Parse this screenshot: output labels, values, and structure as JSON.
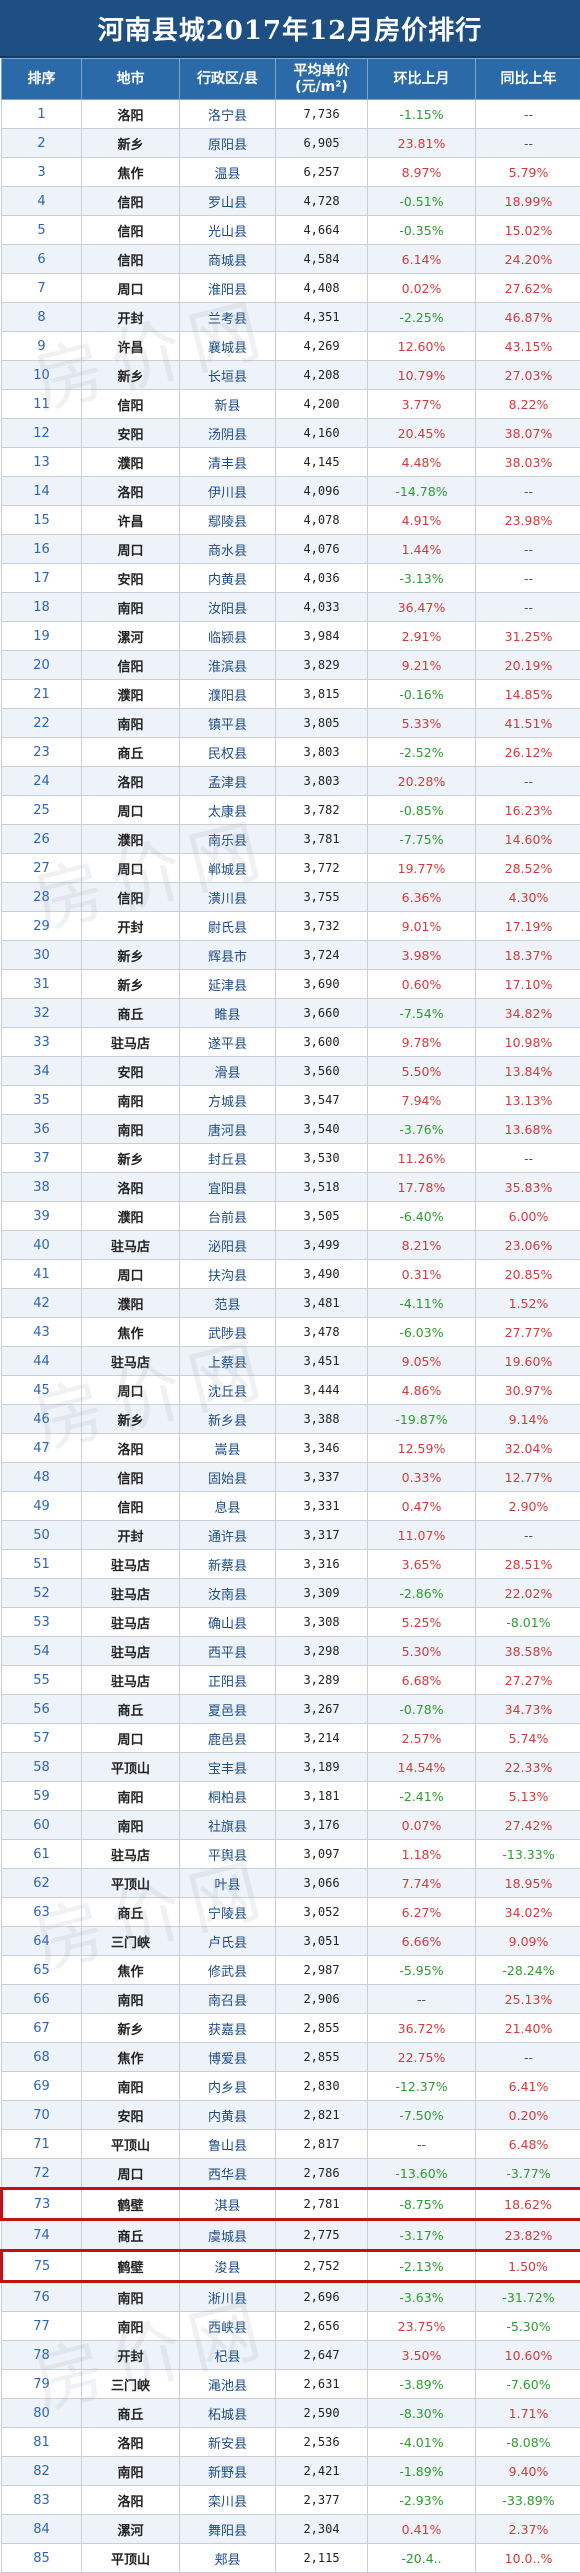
{
  "title": "河南县城2017年12月房价排行",
  "headers": [
    "排序",
    "地市",
    "行政区/县",
    "平均单价(元/m²)",
    "环比上月",
    "同比上年"
  ],
  "rows": [
    [
      "1",
      "洛阳",
      "洛宁县",
      "7,736",
      "-1.15%",
      "--"
    ],
    [
      "2",
      "新乡",
      "原阳县",
      "6,905",
      "23.81%",
      "--"
    ],
    [
      "3",
      "焦作",
      "温县",
      "6,257",
      "8.97%",
      "5.79%"
    ],
    [
      "4",
      "信阳",
      "罗山县",
      "4,728",
      "-0.51%",
      "18.99%"
    ],
    [
      "5",
      "信阳",
      "光山县",
      "4,664",
      "-0.35%",
      "15.02%"
    ],
    [
      "6",
      "信阳",
      "商城县",
      "4,584",
      "6.14%",
      "24.20%"
    ],
    [
      "7",
      "周口",
      "淮阳县",
      "4,408",
      "0.02%",
      "27.62%"
    ],
    [
      "8",
      "开封",
      "兰考县",
      "4,351",
      "-2.25%",
      "46.87%"
    ],
    [
      "9",
      "许昌",
      "襄城县",
      "4,269",
      "12.60%",
      "43.15%"
    ],
    [
      "10",
      "新乡",
      "长垣县",
      "4,208",
      "10.79%",
      "27.03%"
    ],
    [
      "11",
      "信阳",
      "新县",
      "4,200",
      "3.77%",
      "8.22%"
    ],
    [
      "12",
      "安阳",
      "汤阴县",
      "4,160",
      "20.45%",
      "38.07%"
    ],
    [
      "13",
      "濮阳",
      "清丰县",
      "4,145",
      "4.48%",
      "38.03%"
    ],
    [
      "14",
      "洛阳",
      "伊川县",
      "4,096",
      "-14.78%",
      "--"
    ],
    [
      "15",
      "许昌",
      "鄢陵县",
      "4,078",
      "4.91%",
      "23.98%"
    ],
    [
      "16",
      "周口",
      "商水县",
      "4,076",
      "1.44%",
      "--"
    ],
    [
      "17",
      "安阳",
      "内黄县",
      "4,036",
      "-3.13%",
      "--"
    ],
    [
      "18",
      "南阳",
      "汝阳县",
      "4,033",
      "36.47%",
      "--"
    ],
    [
      "19",
      "漯河",
      "临颍县",
      "3,984",
      "2.91%",
      "31.25%"
    ],
    [
      "20",
      "信阳",
      "淮滨县",
      "3,829",
      "9.21%",
      "20.19%"
    ],
    [
      "21",
      "濮阳",
      "濮阳县",
      "3,815",
      "-0.16%",
      "14.85%"
    ],
    [
      "22",
      "南阳",
      "镇平县",
      "3,805",
      "5.33%",
      "41.51%"
    ],
    [
      "23",
      "商丘",
      "民权县",
      "3,803",
      "-2.52%",
      "26.12%"
    ],
    [
      "24",
      "洛阳",
      "孟津县",
      "3,803",
      "20.28%",
      "--"
    ],
    [
      "25",
      "周口",
      "太康县",
      "3,782",
      "-0.85%",
      "16.23%"
    ],
    [
      "26",
      "濮阳",
      "南乐县",
      "3,781",
      "-7.75%",
      "14.60%"
    ],
    [
      "27",
      "周口",
      "郸城县",
      "3,772",
      "19.77%",
      "28.52%"
    ],
    [
      "28",
      "信阳",
      "潢川县",
      "3,755",
      "6.36%",
      "4.30%"
    ],
    [
      "29",
      "开封",
      "尉氏县",
      "3,732",
      "9.01%",
      "17.19%"
    ],
    [
      "30",
      "新乡",
      "辉县市",
      "3,724",
      "3.98%",
      "18.37%"
    ],
    [
      "31",
      "新乡",
      "延津县",
      "3,690",
      "0.60%",
      "17.10%"
    ],
    [
      "32",
      "商丘",
      "睢县",
      "3,660",
      "-7.54%",
      "34.82%"
    ],
    [
      "33",
      "驻马店",
      "遂平县",
      "3,600",
      "9.78%",
      "10.98%"
    ],
    [
      "34",
      "安阳",
      "滑县",
      "3,560",
      "5.50%",
      "13.84%"
    ],
    [
      "35",
      "南阳",
      "方城县",
      "3,547",
      "7.94%",
      "13.13%"
    ],
    [
      "36",
      "南阳",
      "唐河县",
      "3,540",
      "-3.76%",
      "13.68%"
    ],
    [
      "37",
      "新乡",
      "封丘县",
      "3,530",
      "11.26%",
      "--"
    ],
    [
      "38",
      "洛阳",
      "宜阳县",
      "3,518",
      "17.78%",
      "35.83%"
    ],
    [
      "39",
      "濮阳",
      "台前县",
      "3,505",
      "-6.40%",
      "6.00%"
    ],
    [
      "40",
      "驻马店",
      "泌阳县",
      "3,499",
      "8.21%",
      "23.06%"
    ],
    [
      "41",
      "周口",
      "扶沟县",
      "3,490",
      "0.31%",
      "20.85%"
    ],
    [
      "42",
      "濮阳",
      "范县",
      "3,481",
      "-4.11%",
      "1.52%"
    ],
    [
      "43",
      "焦作",
      "武陟县",
      "3,478",
      "-6.03%",
      "27.77%"
    ],
    [
      "44",
      "驻马店",
      "上蔡县",
      "3,451",
      "9.05%",
      "19.60%"
    ],
    [
      "45",
      "周口",
      "沈丘县",
      "3,444",
      "4.86%",
      "30.97%"
    ],
    [
      "46",
      "新乡",
      "新乡县",
      "3,388",
      "-19.87%",
      "9.14%"
    ],
    [
      "47",
      "洛阳",
      "嵩县",
      "3,346",
      "12.59%",
      "32.04%"
    ],
    [
      "48",
      "信阳",
      "固始县",
      "3,337",
      "0.33%",
      "12.77%"
    ],
    [
      "49",
      "信阳",
      "息县",
      "3,331",
      "0.47%",
      "2.90%"
    ],
    [
      "50",
      "开封",
      "通许县",
      "3,317",
      "11.07%",
      "--"
    ],
    [
      "51",
      "驻马店",
      "新蔡县",
      "3,316",
      "3.65%",
      "28.51%"
    ],
    [
      "52",
      "驻马店",
      "汝南县",
      "3,309",
      "-2.86%",
      "22.02%"
    ],
    [
      "53",
      "驻马店",
      "确山县",
      "3,308",
      "5.25%",
      "-8.01%"
    ],
    [
      "54",
      "驻马店",
      "西平县",
      "3,298",
      "5.30%",
      "38.58%"
    ],
    [
      "55",
      "驻马店",
      "正阳县",
      "3,289",
      "6.68%",
      "27.27%"
    ],
    [
      "56",
      "商丘",
      "夏邑县",
      "3,267",
      "-0.78%",
      "34.73%"
    ],
    [
      "57",
      "周口",
      "鹿邑县",
      "3,214",
      "2.57%",
      "5.74%"
    ],
    [
      "58",
      "平顶山",
      "宝丰县",
      "3,189",
      "14.54%",
      "22.33%"
    ],
    [
      "59",
      "南阳",
      "桐柏县",
      "3,181",
      "-2.41%",
      "5.13%"
    ],
    [
      "60",
      "南阳",
      "社旗县",
      "3,176",
      "0.07%",
      "27.42%"
    ],
    [
      "61",
      "驻马店",
      "平舆县",
      "3,097",
      "1.18%",
      "-13.33%"
    ],
    [
      "62",
      "平顶山",
      "叶县",
      "3,066",
      "7.74%",
      "18.95%"
    ],
    [
      "63",
      "商丘",
      "宁陵县",
      "3,052",
      "6.27%",
      "34.02%"
    ],
    [
      "64",
      "三门峡",
      "卢氏县",
      "3,051",
      "6.66%",
      "9.09%"
    ],
    [
      "65",
      "焦作",
      "修武县",
      "2,987",
      "-5.95%",
      "-28.24%"
    ],
    [
      "66",
      "南阳",
      "南召县",
      "2,906",
      "--",
      "25.13%"
    ],
    [
      "67",
      "新乡",
      "获嘉县",
      "2,855",
      "36.72%",
      "21.40%"
    ],
    [
      "68",
      "焦作",
      "博爱县",
      "2,855",
      "22.75%",
      "--"
    ],
    [
      "69",
      "南阳",
      "内乡县",
      "2,830",
      "-12.37%",
      "6.41%"
    ],
    [
      "70",
      "安阳",
      "内黄县",
      "2,821",
      "-7.50%",
      "0.20%"
    ],
    [
      "71",
      "平顶山",
      "鲁山县",
      "2,817",
      "--",
      "6.48%"
    ],
    [
      "72",
      "周口",
      "西华县",
      "2,786",
      "-13.60%",
      "-3.77%"
    ],
    [
      "73",
      "鹤壁",
      "淇县",
      "2,781",
      "-8.75%",
      "18.62%"
    ],
    [
      "74",
      "商丘",
      "虞城县",
      "2,775",
      "-3.17%",
      "23.82%"
    ],
    [
      "75",
      "鹤壁",
      "浚县",
      "2,752",
      "-2.13%",
      "1.50%"
    ],
    [
      "76",
      "南阳",
      "淅川县",
      "2,696",
      "-3.63%",
      "-31.72%"
    ],
    [
      "77",
      "南阳",
      "西峡县",
      "2,656",
      "23.75%",
      "-5.30%"
    ],
    [
      "78",
      "开封",
      "杞县",
      "2,647",
      "3.50%",
      "10.60%"
    ],
    [
      "79",
      "三门峡",
      "渑池县",
      "2,631",
      "-3.89%",
      "-7.60%"
    ],
    [
      "80",
      "商丘",
      "柘城县",
      "2,590",
      "-8.30%",
      "1.71%"
    ],
    [
      "81",
      "洛阳",
      "新安县",
      "2,536",
      "-4.01%",
      "-8.08%"
    ],
    [
      "82",
      "南阳",
      "新野县",
      "2,421",
      "-1.89%",
      "9.40%"
    ],
    [
      "83",
      "洛阳",
      "栾川县",
      "2,377",
      "-2.93%",
      "-33.89%"
    ],
    [
      "84",
      "漯河",
      "舞阳县",
      "2,304",
      "0.41%",
      "2.37%"
    ],
    [
      "85",
      "平顶山",
      "郏县",
      "2,115",
      "-20.4..",
      "10.0..%"
    ]
  ],
  "colors": {
    "header_bg": "#2b6aa8",
    "title_bg": "#1e4f82",
    "positive": "#d53a3a",
    "negative": "#2e9b2e",
    "highlight_border": "#c41212"
  },
  "watermark": "房价网"
}
